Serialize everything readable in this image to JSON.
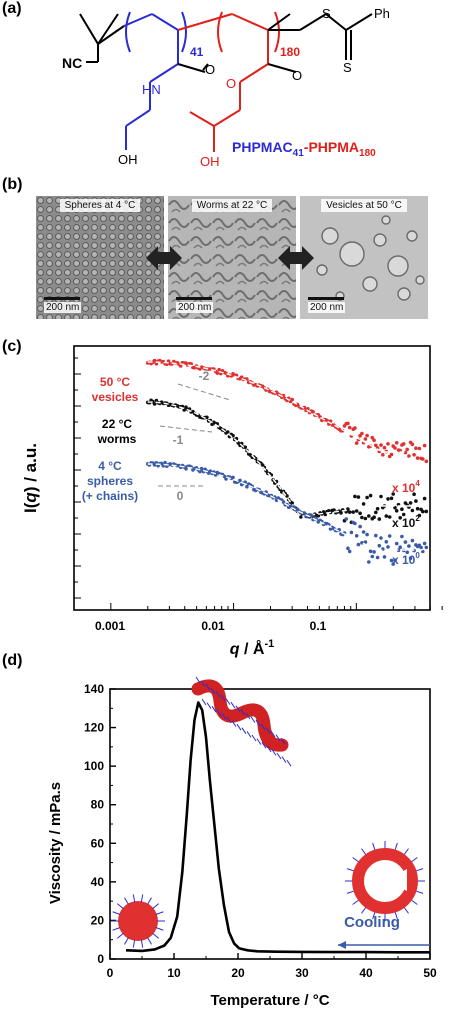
{
  "panels": {
    "a": "(a)",
    "b": "(b)",
    "c": "(c)",
    "d": "(d)"
  },
  "structure": {
    "end_group": "NC",
    "hpmac_subscript": "41",
    "hpma_subscript": "180",
    "s_label": "S",
    "ph_label": "Ph",
    "hn_label": "HN",
    "oh_left": "OH",
    "oh_right": "OH",
    "name_blue": "PHPMAC",
    "name_blue_sub": "41",
    "name_dash": "-",
    "name_red": "PHPMA",
    "name_red_sub": "180",
    "colors": {
      "blue": "#2b2bd6",
      "red": "#e0201a"
    }
  },
  "tem": {
    "spheres": {
      "caption": "Spheres at 4 °C",
      "scale": "200 nm"
    },
    "worms": {
      "caption": "Worms at 22 °C",
      "scale": "200 nm"
    },
    "vesicles": {
      "caption": "Vesicles at 50 °C",
      "scale": "200 nm"
    }
  },
  "saxs": {
    "ylabel_prefix": "I(",
    "ylabel_q": "q",
    "ylabel_suffix": ") / a.u.",
    "xlabel_q": "q",
    "xlabel_unit": " / Å",
    "xlabel_exp": "-1",
    "xticks": [
      "0.001",
      "0.01",
      "0.1"
    ],
    "labels": {
      "vesicles_temp": "50 °C",
      "vesicles_name": "vesicles",
      "worms_temp": "22 °C",
      "worms_name": "worms",
      "spheres_temp": "4 °C",
      "spheres_name": "spheres",
      "spheres_extra": "(+ chains)"
    },
    "slopes": {
      "vesicles": "-2",
      "worms": "-1",
      "spheres": "0"
    },
    "multipliers": {
      "red_base": "x 10",
      "red_exp": "4",
      "black_base": "x 10",
      "black_exp": "2",
      "blue_base": "x 10",
      "blue_exp": "0"
    },
    "colors": {
      "red": "#e03030",
      "black": "#111111",
      "blue": "#3a5ba8"
    }
  },
  "chart_data": {
    "type": "line",
    "xlabel": "Temperature / °C",
    "ylabel": "Viscosity / mPa.s",
    "xlim": [
      0,
      50
    ],
    "ylim": [
      0,
      140
    ],
    "xticks": [
      0,
      10,
      20,
      30,
      40,
      50
    ],
    "yticks": [
      0,
      20,
      40,
      60,
      80,
      100,
      120,
      140
    ],
    "series": [
      {
        "x": [
          2.5,
          5,
          7,
          8.5,
          9.5,
          10.5,
          11.3,
          12,
          12.6,
          13.2,
          13.8,
          14.4,
          15,
          15.6,
          16.3,
          17,
          17.8,
          18.6,
          19.4,
          20.2,
          21.5,
          23,
          26,
          30,
          35,
          40,
          45,
          50
        ],
        "y": [
          4.5,
          4.2,
          5,
          7,
          11,
          22,
          45,
          75,
          103,
          124,
          133,
          129,
          115,
          93,
          70,
          47,
          28,
          14,
          8,
          5.5,
          4.5,
          4,
          3.8,
          3.7,
          3.6,
          3.6,
          3.5,
          3.5
        ]
      }
    ],
    "annotation": "Cooling",
    "grid": false
  }
}
